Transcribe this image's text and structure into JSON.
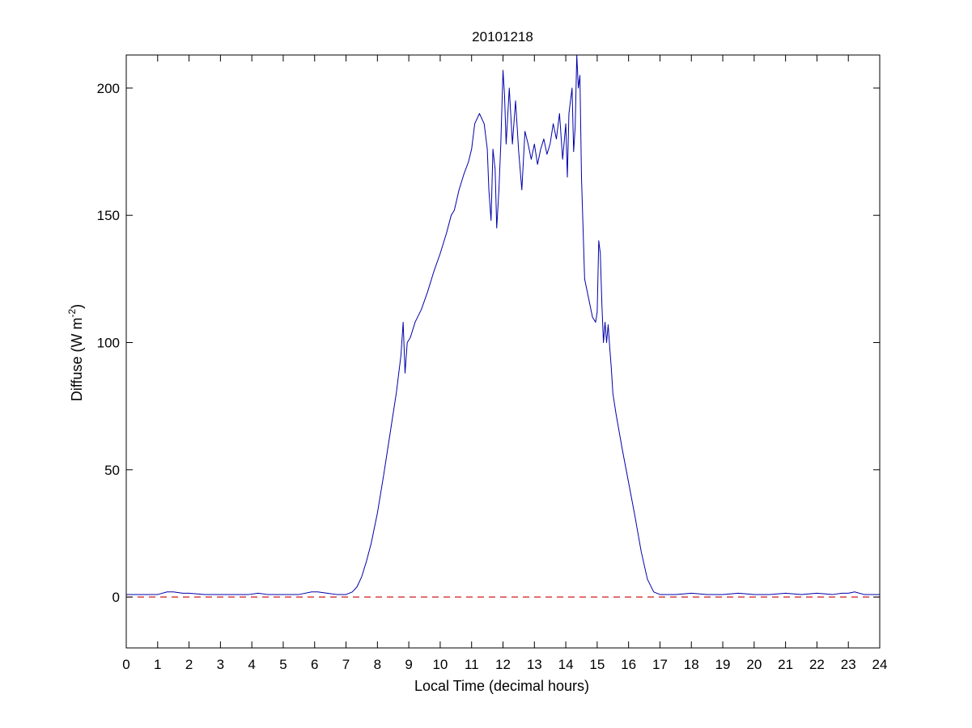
{
  "chart_data": {
    "type": "line",
    "title": "20101218",
    "xlabel": "Local Time (decimal hours)",
    "ylabel": {
      "text": "Diffuse (W m",
      "superscript": "-2",
      "suffix": ")"
    },
    "xlim": [
      0,
      24
    ],
    "ylim": [
      -20,
      213
    ],
    "x_ticks": [
      0,
      1,
      2,
      3,
      4,
      5,
      6,
      7,
      8,
      9,
      10,
      11,
      12,
      13,
      14,
      15,
      16,
      17,
      18,
      19,
      20,
      21,
      22,
      23,
      24
    ],
    "y_ticks": [
      0,
      50,
      100,
      150,
      200
    ],
    "grid": false,
    "colors": {
      "series": "#0000aa",
      "reference": "#cc0000"
    },
    "series": [
      {
        "style": "solid",
        "x": [
          0,
          0.5,
          1,
          1.3,
          1.5,
          1.8,
          2,
          2.5,
          3,
          3.5,
          3.9,
          4.2,
          4.5,
          5,
          5.5,
          5.9,
          6.1,
          6.4,
          6.7,
          7,
          7.2,
          7.35,
          7.5,
          7.65,
          7.8,
          8,
          8.2,
          8.4,
          8.6,
          8.75,
          8.82,
          8.88,
          8.95,
          9.05,
          9.2,
          9.4,
          9.6,
          9.8,
          10,
          10.2,
          10.35,
          10.45,
          10.6,
          10.75,
          10.9,
          11,
          11.1,
          11.25,
          11.4,
          11.5,
          11.55,
          11.62,
          11.68,
          11.75,
          11.8,
          11.87,
          11.93,
          12,
          12.05,
          12.1,
          12.2,
          12.3,
          12.4,
          12.5,
          12.6,
          12.7,
          12.8,
          12.9,
          13,
          13.1,
          13.2,
          13.3,
          13.4,
          13.5,
          13.6,
          13.7,
          13.8,
          13.9,
          14,
          14.05,
          14.1,
          14.2,
          14.25,
          14.3,
          14.35,
          14.4,
          14.45,
          14.5,
          14.6,
          14.75,
          14.85,
          14.95,
          15,
          15.05,
          15.1,
          15.15,
          15.2,
          15.25,
          15.3,
          15.35,
          15.4,
          15.45,
          15.5,
          15.6,
          15.8,
          16,
          16.2,
          16.4,
          16.6,
          16.8,
          17,
          17.2,
          17.5,
          18,
          18.5,
          19,
          19.5,
          20,
          20.5,
          21,
          21.5,
          22,
          22.5,
          22.8,
          23,
          23.2,
          23.5,
          24
        ],
        "y": [
          1,
          1,
          1,
          2,
          2,
          1.5,
          1.5,
          1,
          1,
          1,
          1,
          1.5,
          1,
          1,
          1,
          2,
          2,
          1.5,
          1,
          1,
          2,
          4,
          8,
          14,
          21,
          33,
          48,
          64,
          80,
          95,
          108,
          88,
          100,
          102,
          108,
          113,
          120,
          128,
          135,
          143,
          150,
          152,
          160,
          166,
          171,
          176,
          186,
          190,
          186,
          176,
          160,
          148,
          176,
          168,
          145,
          160,
          178,
          207,
          197,
          178,
          200,
          178,
          195,
          175,
          160,
          183,
          178,
          172,
          178,
          170,
          176,
          180,
          174,
          178,
          186,
          180,
          190,
          172,
          186,
          165,
          190,
          200,
          175,
          185,
          213,
          200,
          205,
          165,
          125,
          116,
          110,
          108,
          112,
          140,
          135,
          115,
          100,
          108,
          100,
          107,
          98,
          90,
          80,
          72,
          58,
          45,
          32,
          18,
          7,
          2,
          1,
          1,
          1,
          1.5,
          1,
          1,
          1.5,
          1,
          1,
          1.5,
          1,
          1.5,
          1,
          1.5,
          1.5,
          2,
          1,
          1
        ]
      },
      {
        "style": "dashed",
        "x": [
          0,
          24
        ],
        "y": [
          0,
          0
        ]
      }
    ]
  }
}
